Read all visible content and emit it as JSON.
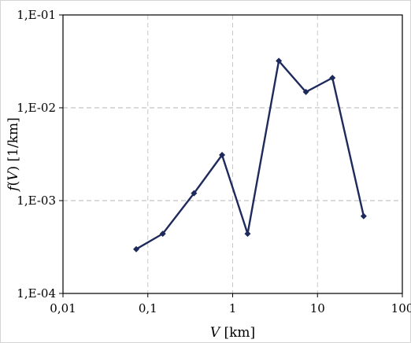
{
  "chart_data": {
    "type": "line",
    "title": "",
    "xlabel": {
      "var": "V",
      "unit": " [km]"
    },
    "ylabel": {
      "fn": "f",
      "open": "(",
      "var": "V",
      "close": ")",
      "unit": " [1/km]"
    },
    "xscale": "log",
    "yscale": "log",
    "xlim": [
      0.01,
      100
    ],
    "ylim": [
      0.0001,
      0.1
    ],
    "x_ticks": [
      {
        "value": 0.01,
        "label": "0,01"
      },
      {
        "value": 0.1,
        "label": "0,1"
      },
      {
        "value": 1,
        "label": "1"
      },
      {
        "value": 10,
        "label": "10"
      },
      {
        "value": 100,
        "label": "100"
      }
    ],
    "y_ticks": [
      {
        "value": 0.0001,
        "label": "1,E-04"
      },
      {
        "value": 0.001,
        "label": "1,E-03"
      },
      {
        "value": 0.01,
        "label": "1,E-02"
      },
      {
        "value": 0.1,
        "label": "1,E-01"
      }
    ],
    "grid": true,
    "legend": "none",
    "series": [
      {
        "color": "#1f2a5c",
        "marker": "diamond",
        "x": [
          0.073,
          0.15,
          0.35,
          0.75,
          1.5,
          3.5,
          7.3,
          15,
          35
        ],
        "y": [
          0.0003,
          0.00044,
          0.0012,
          0.0031,
          0.00044,
          0.032,
          0.0148,
          0.021,
          0.00068
        ]
      }
    ]
  }
}
